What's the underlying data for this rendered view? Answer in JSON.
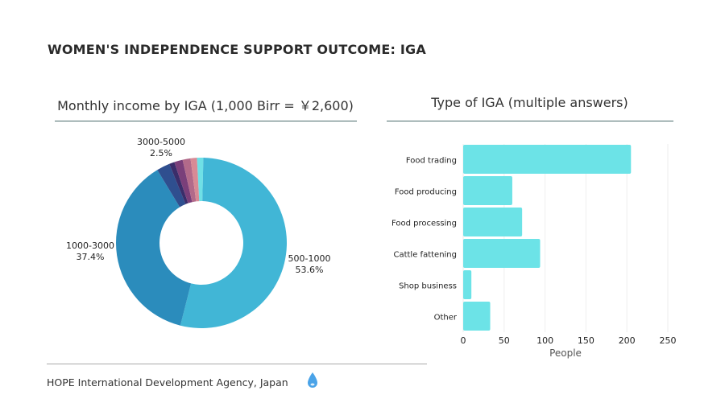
{
  "title": "WOMEN'S INDEPENDENCE SUPPORT OUTCOME: IGA",
  "footer": "HOPE International Development Agency, Japan",
  "colors": {
    "bar": "#6ce3e7",
    "accent": "#4aa3e8"
  },
  "chart_data": [
    {
      "type": "pie",
      "donut": true,
      "title": "Monthly income by IGA (1,000 Birr = ￥2,600)",
      "slices": [
        {
          "name": "other-a",
          "value": 1.2,
          "color": "#6fe0e6"
        },
        {
          "name": "500-1000",
          "value": 53.6,
          "color": "#41b6d6"
        },
        {
          "name": "1000-3000",
          "value": 37.4,
          "color": "#2b8cbc"
        },
        {
          "name": "3000-5000",
          "value": 2.5,
          "color": "#2f4f8f"
        },
        {
          "name": "other-b",
          "value": 1.0,
          "color": "#3a2d6a"
        },
        {
          "name": "other-c",
          "value": 1.6,
          "color": "#7a3f7a"
        },
        {
          "name": "other-d",
          "value": 1.5,
          "color": "#b26a8a"
        },
        {
          "name": "other-e",
          "value": 1.2,
          "color": "#d88a95"
        }
      ],
      "labels": [
        {
          "name": "500-1000",
          "pct": "53.6%"
        },
        {
          "name": "1000-3000",
          "pct": "37.4%"
        },
        {
          "name": "3000-5000",
          "pct": "2.5%"
        }
      ]
    },
    {
      "type": "bar",
      "orientation": "horizontal",
      "title": "Type of IGA (multiple answers)",
      "categories": [
        "Food trading",
        "Food producing",
        "Food processing",
        "Cattle fattening",
        "Shop business",
        "Other"
      ],
      "values": [
        205,
        60,
        72,
        94,
        10,
        33
      ],
      "xlabel": "People",
      "xlim": [
        0,
        250
      ],
      "xticks": [
        "0",
        "50",
        "100",
        "150",
        "200",
        "250"
      ],
      "grid": true
    }
  ]
}
